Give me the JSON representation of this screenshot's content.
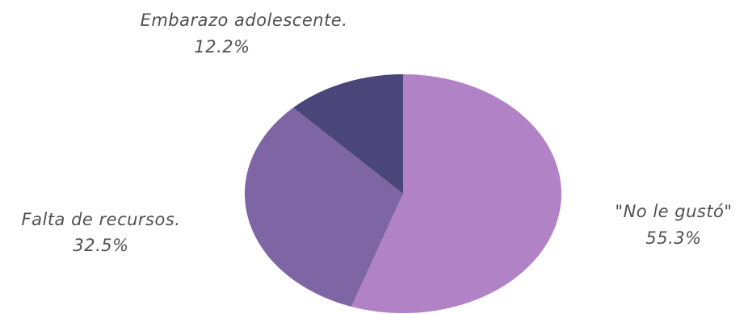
{
  "chart_data": {
    "type": "pie",
    "title": "",
    "slices": [
      {
        "label": "\"No le gustó\"",
        "value": 55.3,
        "value_label": "55.3%",
        "color": "#b282c7"
      },
      {
        "label": "Falta de recursos.",
        "value": 32.5,
        "value_label": "32.5%",
        "color": "#7e66a4"
      },
      {
        "label": "Embarazo adolescente.",
        "value": 12.2,
        "value_label": "12.2%",
        "color": "#4b467a"
      }
    ],
    "start_angle": "top",
    "direction": "clockwise",
    "labels_position": "outside",
    "legend": "none"
  }
}
